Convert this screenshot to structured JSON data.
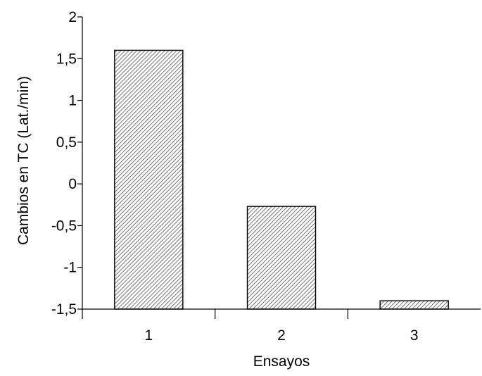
{
  "chart_data": {
    "type": "bar",
    "title": "",
    "xlabel": "Ensayos",
    "ylabel": "Cambios en TC (Lat./min)",
    "categories": [
      "1",
      "2",
      "3"
    ],
    "values": [
      1.6,
      -0.27,
      -1.4
    ],
    "baseline": -1.5,
    "ylim": [
      -1.5,
      2
    ],
    "yticks": [
      {
        "value": 2,
        "label": "2"
      },
      {
        "value": 1.5,
        "label": "1,5"
      },
      {
        "value": 1,
        "label": "1"
      },
      {
        "value": 0.5,
        "label": "0,5"
      },
      {
        "value": 0,
        "label": "0"
      },
      {
        "value": -0.5,
        "label": "-0,5"
      },
      {
        "value": -1,
        "label": "-1"
      },
      {
        "value": -1.5,
        "label": "-1,5"
      }
    ],
    "grid": false,
    "legend": "none",
    "bar_fill": "hatched",
    "colors": {
      "axis": "#000000",
      "bar_stroke": "#000000",
      "hatch": "#555555",
      "background": "#ffffff"
    }
  }
}
